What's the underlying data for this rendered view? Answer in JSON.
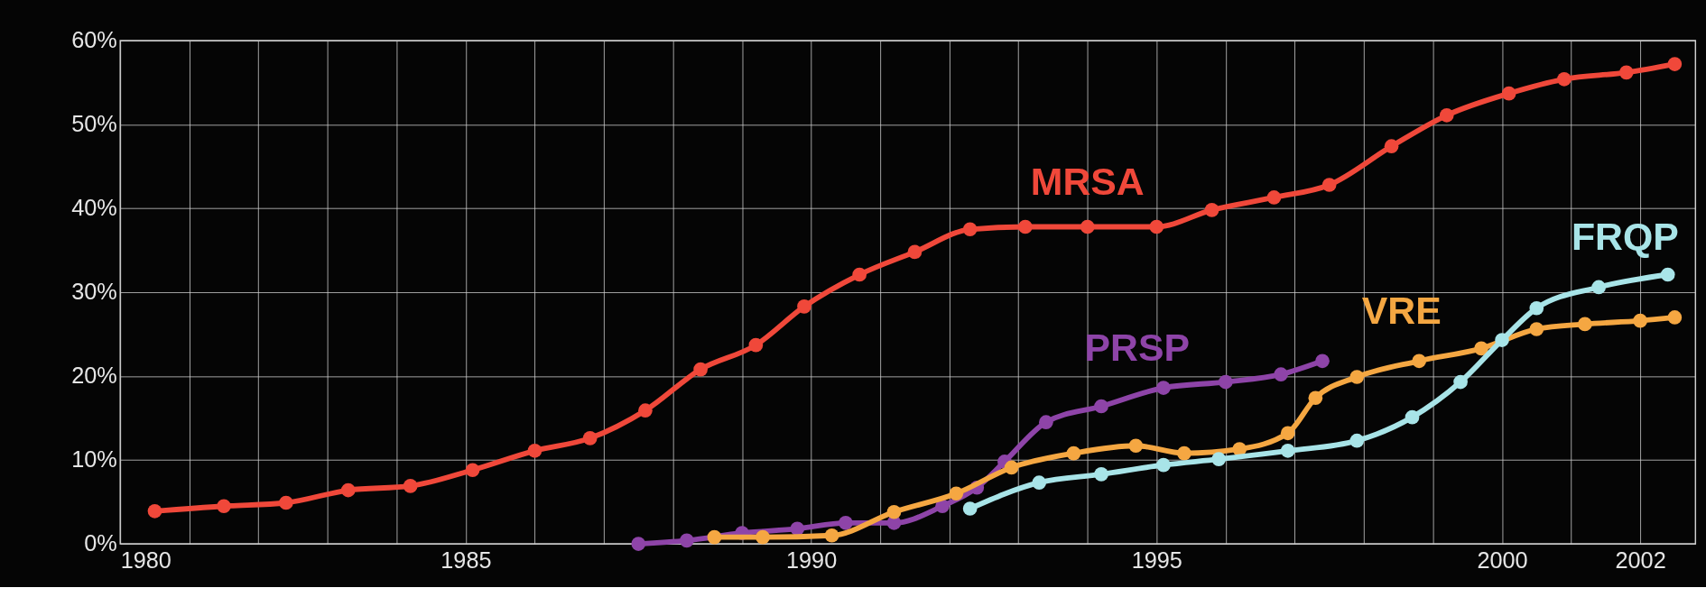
{
  "chart_data": {
    "type": "line",
    "marker": "circle",
    "grid": true,
    "line_style": "solid",
    "xlim": [
      1980,
      2002.8
    ],
    "ylim": [
      0,
      60
    ],
    "xticks": [
      1980,
      {
        "value": 1981,
        "label": null
      },
      {
        "value": 1982,
        "label": null
      },
      {
        "value": 1983,
        "label": null
      },
      {
        "value": 1984,
        "label": null
      },
      1985,
      {
        "value": 1986,
        "label": null
      },
      {
        "value": 1987,
        "label": null
      },
      {
        "value": 1988,
        "label": null
      },
      {
        "value": 1989,
        "label": null
      },
      1990,
      {
        "value": 1991,
        "label": null
      },
      {
        "value": 1992,
        "label": null
      },
      {
        "value": 1993,
        "label": null
      },
      {
        "value": 1994,
        "label": null
      },
      1995,
      {
        "value": 1996,
        "label": null
      },
      {
        "value": 1997,
        "label": null
      },
      {
        "value": 1998,
        "label": null
      },
      {
        "value": 1999,
        "label": null
      },
      2000,
      {
        "value": 2001,
        "label": null
      },
      2002
    ],
    "yticks": [
      {
        "value": 0,
        "label": "0%"
      },
      {
        "value": 10,
        "label": "10%"
      },
      {
        "value": 20,
        "label": "20%"
      },
      {
        "value": 30,
        "label": "30%"
      },
      {
        "value": 40,
        "label": "40%"
      },
      {
        "value": 50,
        "label": "50%"
      },
      {
        "value": 60,
        "label": "60%"
      }
    ],
    "series": [
      {
        "name": "MRSA",
        "color": "#f0483a",
        "x": [
          1980.5,
          1981.5,
          1982.4,
          1983.3,
          1984.2,
          1985.1,
          1986.0,
          1986.8,
          1987.6,
          1988.4,
          1989.2,
          1989.9,
          1990.7,
          1991.5,
          1992.3,
          1993.1,
          1994.0,
          1995.0,
          1995.8,
          1996.7,
          1997.5,
          1998.4,
          1999.2,
          2000.1,
          2000.9,
          2001.8,
          2002.5
        ],
        "values": [
          3.9,
          4.5,
          4.9,
          6.4,
          6.9,
          8.8,
          11.1,
          12.6,
          15.9,
          20.8,
          23.7,
          28.3,
          32.1,
          34.8,
          37.5,
          37.8,
          37.8,
          37.8,
          39.8,
          41.3,
          42.8,
          47.4,
          51.1,
          53.7,
          55.4,
          56.2,
          57.2
        ]
      },
      {
        "name": "PRSP",
        "color": "#8e44a8",
        "x": [
          1987.5,
          1988.2,
          1989.0,
          1989.8,
          1990.5,
          1991.2,
          1991.9,
          1992.4,
          1992.8,
          1993.4,
          1994.2,
          1995.1,
          1996.0,
          1996.8,
          1997.4
        ],
        "values": [
          0,
          0.4,
          1.3,
          1.8,
          2.5,
          2.5,
          4.5,
          6.7,
          9.8,
          14.5,
          16.4,
          18.6,
          19.3,
          20.2,
          21.8
        ]
      },
      {
        "name": "VRE",
        "color": "#f5a742",
        "x": [
          1988.6,
          1989.3,
          1990.3,
          1991.2,
          1992.1,
          1992.9,
          1993.8,
          1994.7,
          1995.4,
          1996.2,
          1996.9,
          1997.3,
          1997.9,
          1998.8,
          1999.7,
          2000.5,
          2001.2,
          2002.0,
          2002.5
        ],
        "values": [
          0.8,
          0.8,
          1.0,
          3.8,
          6.0,
          9.1,
          10.8,
          11.7,
          10.8,
          11.3,
          13.2,
          17.4,
          19.9,
          21.8,
          23.3,
          25.6,
          26.2,
          26.6,
          27.0
        ]
      },
      {
        "name": "FRQP",
        "color": "#a8e4e8",
        "x": [
          1992.3,
          1993.3,
          1994.2,
          1995.1,
          1995.9,
          1996.9,
          1997.9,
          1998.7,
          1999.4,
          2000.0,
          2000.5,
          2001.4,
          2002.4
        ],
        "values": [
          4.2,
          7.3,
          8.3,
          9.4,
          10.1,
          11.1,
          12.3,
          15.1,
          19.3,
          24.3,
          28.1,
          30.6,
          32.1
        ]
      }
    ]
  }
}
